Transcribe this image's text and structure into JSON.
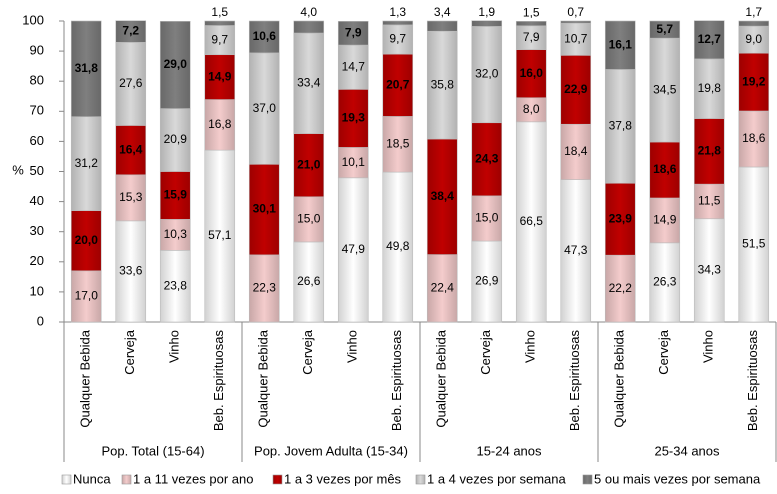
{
  "chart_data": {
    "type": "stacked-bar",
    "y_label": "%",
    "categories": [
      "Qualquer Bebida",
      "Cerveja",
      "Vinho",
      "Beb. Espirituosas",
      "Qualquer Bebida",
      "Cerveja",
      "Vinho",
      "Beb. Espirituosas",
      "Qualquer Bebida",
      "Cerveja",
      "Vinho",
      "Beb. Espirituosas",
      "Qualquer Bebida",
      "Cerveja",
      "Vinho",
      "Beb. Espirituosas"
    ],
    "category_groups": [
      "Pop. Total (15-64)",
      "Pop. Jovem Adulta (15-34)",
      "15-24 anos",
      "25-34 anos"
    ],
    "ylim": [
      0,
      100
    ],
    "yticks": [
      0,
      10,
      20,
      30,
      40,
      50,
      60,
      70,
      80,
      90,
      100
    ],
    "series": [
      {
        "name": "Nunca",
        "color": "#ffffff",
        "values": [
          null,
          33.6,
          23.8,
          57.1,
          null,
          26.6,
          47.9,
          49.8,
          null,
          26.9,
          66.5,
          47.3,
          null,
          26.3,
          34.3,
          51.5
        ],
        "value_labels": [
          null,
          "33,6",
          "23,8",
          "57,1",
          null,
          "26,6",
          "47,9",
          "49,8",
          null,
          "26,9",
          "66,5",
          "47,3",
          null,
          "26,3",
          "34,3",
          "51,5"
        ]
      },
      {
        "name": "1 a 11 vezes por ano",
        "color": "#f4cccc",
        "values": [
          17.0,
          15.3,
          10.3,
          16.8,
          22.3,
          15.0,
          10.1,
          18.5,
          22.4,
          15.0,
          8.0,
          18.4,
          22.2,
          14.9,
          11.5,
          18.6
        ],
        "value_labels": [
          "17,0",
          "15,3",
          "10,3",
          "16,8",
          "22,3",
          "15,0",
          "10,1",
          "18,5",
          "22,4",
          "15,0",
          "8,0",
          "18,4",
          "22,2",
          "14,9",
          "11,5",
          "18,6"
        ]
      },
      {
        "name": "1 a 3 vezes por mês",
        "color": "#c00000",
        "values": [
          20.0,
          16.4,
          15.9,
          14.9,
          30.1,
          21.0,
          19.3,
          20.7,
          38.4,
          24.3,
          16.0,
          22.9,
          23.9,
          18.6,
          21.8,
          19.2
        ],
        "value_labels": [
          "20,0",
          "16,4",
          "15,9",
          "14,9",
          "30,1",
          "21,0",
          "19,3",
          "20,7",
          "38,4",
          "24,3",
          "16,0",
          "22,9",
          "23,9",
          "18,6",
          "21,8",
          "19,2"
        ]
      },
      {
        "name": "1 a 4 vezes por semana",
        "color": "#d9d9d9",
        "values": [
          31.2,
          27.6,
          20.9,
          9.7,
          37.0,
          33.4,
          14.7,
          9.7,
          35.8,
          32.0,
          7.9,
          10.7,
          37.8,
          34.5,
          19.8,
          9.0
        ],
        "value_labels": [
          "31,2",
          "27,6",
          "20,9",
          "9,7",
          "37,0",
          "33,4",
          "14,7",
          "9,7",
          "35,8",
          "32,0",
          "7,9",
          "10,7",
          "37,8",
          "34,5",
          "19,8",
          "9,0"
        ]
      },
      {
        "name": "5 ou mais vezes por semana",
        "color": "#7f7f7f",
        "values": [
          31.8,
          7.2,
          29.0,
          1.5,
          10.6,
          4.0,
          7.9,
          1.3,
          3.4,
          1.9,
          1.5,
          0.7,
          16.1,
          5.7,
          12.7,
          1.7
        ],
        "value_labels": [
          "31,8",
          "7,2",
          "29,0",
          "1,5",
          "10,6",
          "4,0",
          "7,9",
          "1,3",
          "3,4",
          "1,9",
          "1,5",
          "0,7",
          "16,1",
          "5,7",
          "12,7",
          "1,7"
        ]
      }
    ]
  }
}
